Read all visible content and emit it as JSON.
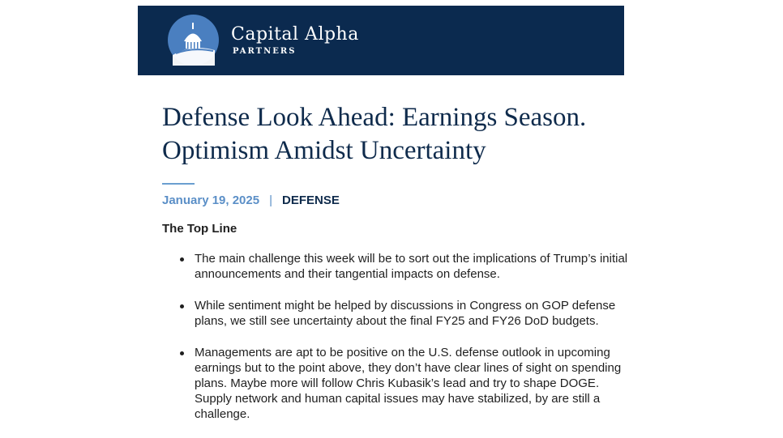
{
  "header": {
    "brand_name": "Capital Alpha",
    "brand_sub": "PARTNERS",
    "logo_icon": "capitol-dome-icon",
    "colors": {
      "banner": "#0b2a4f",
      "accent": "#5b8fc7",
      "title": "#0f2b4c"
    }
  },
  "article": {
    "title_line1": "Defense Look Ahead: Earnings Season.",
    "title_line2": "Optimism Amidst Uncertainty",
    "date": "January 19, 2025",
    "separator": "|",
    "category": "DEFENSE",
    "section_heading": "The Top Line",
    "bullets": [
      "The main challenge this week will be to sort out the implications of Trump’s initial announcements and their tangential impacts on defense.",
      "While sentiment might be helped by discussions in Congress on GOP defense plans, we still see uncertainty about the final FY25 and FY26 DoD budgets.",
      "Managements are apt to be positive on the U.S. defense outlook in upcoming earnings but to the point above, they don’t have clear lines of sight on spending plans. Maybe more will follow Chris Kubasik’s lead and try to shape DOGE. Supply network and human capital issues may have stabilized, by are still a challenge."
    ]
  }
}
